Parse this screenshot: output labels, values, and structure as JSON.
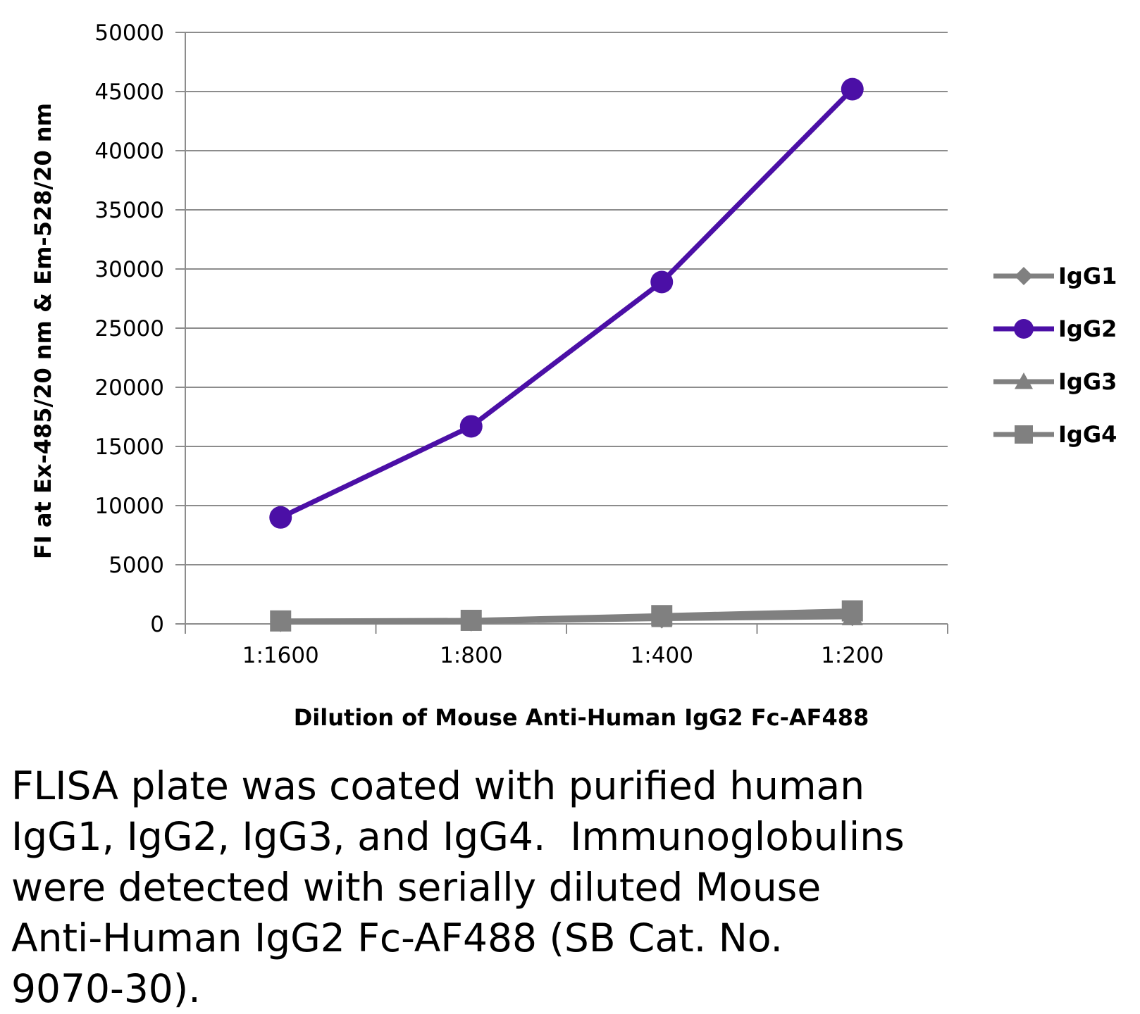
{
  "chart_data": {
    "type": "line",
    "xlabel": "Dilution of Mouse Anti-Human IgG2 Fc-AF488",
    "ylabel": "FI at Ex-485/20 nm & Em-528/20 nm",
    "ylim": [
      0,
      50000
    ],
    "yticks": [
      "0",
      "5000",
      "10000",
      "15000",
      "20000",
      "25000",
      "30000",
      "35000",
      "40000",
      "45000",
      "50000"
    ],
    "categories": [
      "1:1600",
      "1:800",
      "1:400",
      "1:200"
    ],
    "grid": true,
    "legend_position": "right",
    "series": [
      {
        "name": "IgG1",
        "values": [
          200,
          250,
          500,
          700
        ],
        "color": "#808080",
        "marker": "diamond"
      },
      {
        "name": "IgG2",
        "values": [
          9000,
          16700,
          28900,
          45200
        ],
        "color": "#4B0FA6",
        "marker": "circle"
      },
      {
        "name": "IgG3",
        "values": [
          150,
          200,
          450,
          600
        ],
        "color": "#808080",
        "marker": "triangle"
      },
      {
        "name": "IgG4",
        "values": [
          250,
          300,
          700,
          1100
        ],
        "color": "#808080",
        "marker": "square"
      }
    ]
  },
  "caption": "FLISA plate was coated with purified human\nIgG1, IgG2, IgG3, and IgG4.  Immunoglobulins\nwere detected with serially diluted Mouse\nAnti-Human IgG2 Fc-AF488 (SB Cat. No.\n9070-30)."
}
